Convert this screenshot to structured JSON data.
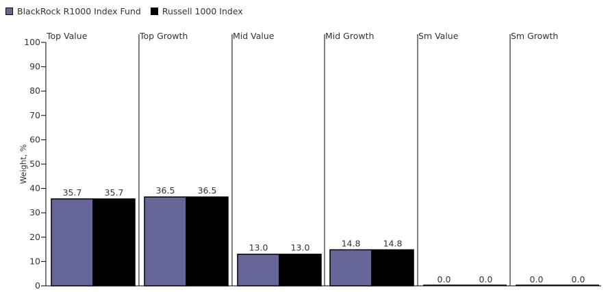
{
  "chart_data": {
    "type": "bar",
    "categories": [
      "Top Value",
      "Top Growth",
      "Mid Value",
      "Mid Growth",
      "Sm Value",
      "Sm Growth"
    ],
    "series": [
      {
        "name": "BlackRock R1000 Index Fund",
        "values": [
          35.7,
          36.5,
          13.0,
          14.8,
          0.0,
          0.0
        ],
        "color": "#666699"
      },
      {
        "name": "Russell 1000 Index",
        "values": [
          35.7,
          36.5,
          13.0,
          14.8,
          0.0,
          0.0
        ],
        "color": "#000000"
      }
    ],
    "ylabel": "Weight, %",
    "ylim": [
      0,
      100
    ],
    "yticks": [
      0,
      10,
      20,
      30,
      40,
      50,
      60,
      70,
      80,
      90,
      100
    ],
    "legend_position": "top-left",
    "grid": false
  }
}
